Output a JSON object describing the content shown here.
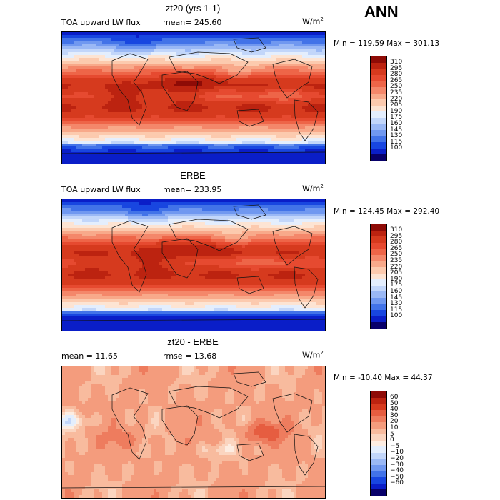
{
  "season": "ANN",
  "colors": {
    "abs": [
      "#08006a",
      "#0a1ec8",
      "#1846e0",
      "#4273e8",
      "#7098f0",
      "#9ab8f5",
      "#c2d6fa",
      "#e4eefd",
      "#fde4d3",
      "#fccaae",
      "#f8a98a",
      "#f4876a",
      "#ee6548",
      "#e64a30",
      "#d63a1e",
      "#bc2310",
      "#8e0b06"
    ],
    "diff": [
      "#08006a",
      "#0a1ec8",
      "#1846e0",
      "#4273e8",
      "#7098f0",
      "#9ab8f5",
      "#c2d6fa",
      "#e4eefd",
      "#fdede2",
      "#fbd5c0",
      "#f8bb9e",
      "#f49c7d",
      "#ee7c5e",
      "#e65d40",
      "#d63a1e",
      "#bc2310",
      "#8e0b06"
    ]
  },
  "panels": [
    {
      "title": "zt20 (yrs 1-1)",
      "left_label": "TOA upward LW flux",
      "stat_label": "mean= 245.60",
      "units": "W/m",
      "units_sup": "2",
      "minmax": "Min = 119.59 Max = 301.13"
    },
    {
      "title": "ERBE",
      "left_label": "TOA upward LW flux",
      "stat_label": "mean= 233.95",
      "units": "W/m",
      "units_sup": "2",
      "minmax": "Min = 124.45 Max = 292.40"
    },
    {
      "title": "zt20 - ERBE",
      "left_label": "mean =  11.65",
      "stat_label": "rmse =  13.68",
      "units": "W/m",
      "units_sup": "2",
      "minmax": "Min = -10.40 Max =  44.37"
    }
  ],
  "chart_data": [
    {
      "type": "heatmap",
      "title": "zt20 (yrs 1-1)",
      "variable": "TOA upward LW flux",
      "units": "W/m2",
      "mean": 245.6,
      "min": 119.59,
      "max": 301.13,
      "colorbar_levels": [
        "310",
        "295",
        "280",
        "265",
        "250",
        "235",
        "220",
        "205",
        "190",
        "175",
        "160",
        "145",
        "130",
        "115",
        "100"
      ]
    },
    {
      "type": "heatmap",
      "title": "ERBE",
      "variable": "TOA upward LW flux",
      "units": "W/m2",
      "mean": 233.95,
      "min": 124.45,
      "max": 292.4,
      "colorbar_levels": [
        "310",
        "295",
        "280",
        "265",
        "250",
        "235",
        "220",
        "205",
        "190",
        "175",
        "160",
        "145",
        "130",
        "115",
        "100"
      ]
    },
    {
      "type": "heatmap",
      "title": "zt20 - ERBE",
      "units": "W/m2",
      "mean": 11.65,
      "rmse": 13.68,
      "min": -10.4,
      "max": 44.37,
      "colorbar_levels": [
        "60",
        "50",
        "40",
        "30",
        "20",
        "10",
        "5",
        "0",
        "−5",
        "−10",
        "−20",
        "−30",
        "−40",
        "−50",
        "−60"
      ]
    }
  ]
}
